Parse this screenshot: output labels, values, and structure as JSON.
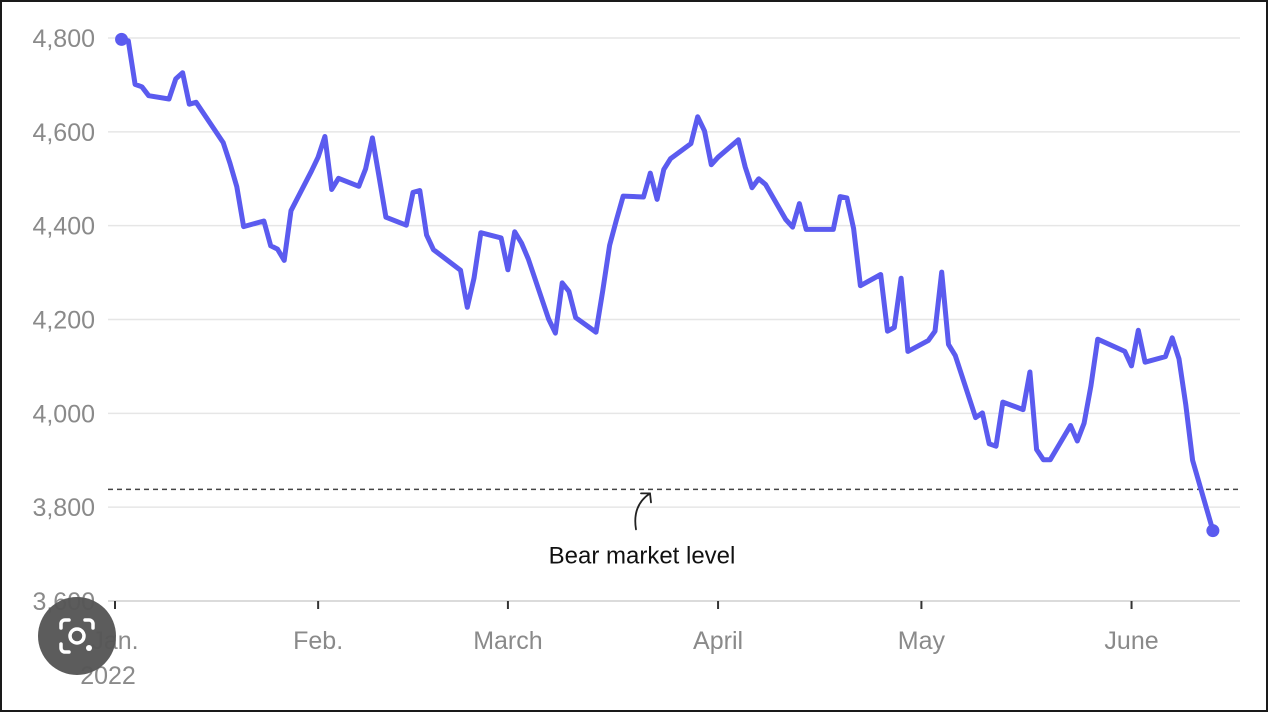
{
  "chart_data": {
    "type": "line",
    "title": "",
    "xlabel": "",
    "ylabel": "",
    "year_label": "2022",
    "ylim": [
      3600,
      4800
    ],
    "yticks": [
      {
        "value": 3600,
        "label": "3,600"
      },
      {
        "value": 3800,
        "label": "3,800"
      },
      {
        "value": 4000,
        "label": "4,000"
      },
      {
        "value": 4200,
        "label": "4,200"
      },
      {
        "value": 4400,
        "label": "4,400"
      },
      {
        "value": 4600,
        "label": "4,600"
      },
      {
        "value": 4800,
        "label": "4,800"
      }
    ],
    "xlim": [
      "2022-01-01",
      "2022-06-17"
    ],
    "xticks": [
      {
        "date": "2022-01-01",
        "label": "Jan."
      },
      {
        "date": "2022-02-01",
        "label": "Feb."
      },
      {
        "date": "2022-03-01",
        "label": "March"
      },
      {
        "date": "2022-04-01",
        "label": "April"
      },
      {
        "date": "2022-05-01",
        "label": "May"
      },
      {
        "date": "2022-06-01",
        "label": "June"
      }
    ],
    "grid": true,
    "reference_line": {
      "value": 3838,
      "label": "Bear market level",
      "style": "dashed"
    },
    "series": [
      {
        "name": "",
        "color": "#5b5bef",
        "points": [
          [
            "2022-01-03",
            4797
          ],
          [
            "2022-01-04",
            4794
          ],
          [
            "2022-01-05",
            4701
          ],
          [
            "2022-01-06",
            4696
          ],
          [
            "2022-01-07",
            4677
          ],
          [
            "2022-01-10",
            4670
          ],
          [
            "2022-01-11",
            4713
          ],
          [
            "2022-01-12",
            4726
          ],
          [
            "2022-01-13",
            4659
          ],
          [
            "2022-01-14",
            4663
          ],
          [
            "2022-01-18",
            4577
          ],
          [
            "2022-01-19",
            4533
          ],
          [
            "2022-01-20",
            4483
          ],
          [
            "2022-01-21",
            4398
          ],
          [
            "2022-01-24",
            4410
          ],
          [
            "2022-01-25",
            4357
          ],
          [
            "2022-01-26",
            4350
          ],
          [
            "2022-01-27",
            4326
          ],
          [
            "2022-01-28",
            4432
          ],
          [
            "2022-01-31",
            4516
          ],
          [
            "2022-02-01",
            4546
          ],
          [
            "2022-02-02",
            4590
          ],
          [
            "2022-02-03",
            4477
          ],
          [
            "2022-02-04",
            4501
          ],
          [
            "2022-02-07",
            4484
          ],
          [
            "2022-02-08",
            4521
          ],
          [
            "2022-02-09",
            4587
          ],
          [
            "2022-02-10",
            4504
          ],
          [
            "2022-02-11",
            4418
          ],
          [
            "2022-02-14",
            4401
          ],
          [
            "2022-02-15",
            4471
          ],
          [
            "2022-02-16",
            4475
          ],
          [
            "2022-02-17",
            4380
          ],
          [
            "2022-02-18",
            4349
          ],
          [
            "2022-02-22",
            4305
          ],
          [
            "2022-02-23",
            4226
          ],
          [
            "2022-02-24",
            4288
          ],
          [
            "2022-02-25",
            4385
          ],
          [
            "2022-02-28",
            4374
          ],
          [
            "2022-03-01",
            4306
          ],
          [
            "2022-03-02",
            4387
          ],
          [
            "2022-03-03",
            4363
          ],
          [
            "2022-03-04",
            4329
          ],
          [
            "2022-03-07",
            4201
          ],
          [
            "2022-03-08",
            4171
          ],
          [
            "2022-03-09",
            4278
          ],
          [
            "2022-03-10",
            4260
          ],
          [
            "2022-03-11",
            4204
          ],
          [
            "2022-03-14",
            4173
          ],
          [
            "2022-03-15",
            4262
          ],
          [
            "2022-03-16",
            4358
          ],
          [
            "2022-03-17",
            4412
          ],
          [
            "2022-03-18",
            4463
          ],
          [
            "2022-03-21",
            4461
          ],
          [
            "2022-03-22",
            4512
          ],
          [
            "2022-03-23",
            4456
          ],
          [
            "2022-03-24",
            4520
          ],
          [
            "2022-03-25",
            4543
          ],
          [
            "2022-03-28",
            4575
          ],
          [
            "2022-03-29",
            4632
          ],
          [
            "2022-03-30",
            4602
          ],
          [
            "2022-03-31",
            4530
          ],
          [
            "2022-04-01",
            4546
          ],
          [
            "2022-04-04",
            4583
          ],
          [
            "2022-04-05",
            4525
          ],
          [
            "2022-04-06",
            4481
          ],
          [
            "2022-04-07",
            4500
          ],
          [
            "2022-04-08",
            4488
          ],
          [
            "2022-04-11",
            4413
          ],
          [
            "2022-04-12",
            4397
          ],
          [
            "2022-04-13",
            4447
          ],
          [
            "2022-04-14",
            4392
          ],
          [
            "2022-04-18",
            4392
          ],
          [
            "2022-04-19",
            4462
          ],
          [
            "2022-04-20",
            4459
          ],
          [
            "2022-04-21",
            4394
          ],
          [
            "2022-04-22",
            4272
          ],
          [
            "2022-04-25",
            4296
          ],
          [
            "2022-04-26",
            4175
          ],
          [
            "2022-04-27",
            4183
          ],
          [
            "2022-04-28",
            4288
          ],
          [
            "2022-04-29",
            4132
          ],
          [
            "2022-05-02",
            4155
          ],
          [
            "2022-05-03",
            4175
          ],
          [
            "2022-05-04",
            4301
          ],
          [
            "2022-05-05",
            4147
          ],
          [
            "2022-05-06",
            4123
          ],
          [
            "2022-05-09",
            3991
          ],
          [
            "2022-05-10",
            4001
          ],
          [
            "2022-05-11",
            3935
          ],
          [
            "2022-05-12",
            3930
          ],
          [
            "2022-05-13",
            4024
          ],
          [
            "2022-05-16",
            4008
          ],
          [
            "2022-05-17",
            4088
          ],
          [
            "2022-05-18",
            3923
          ],
          [
            "2022-05-19",
            3901
          ],
          [
            "2022-05-20",
            3901
          ],
          [
            "2022-05-23",
            3974
          ],
          [
            "2022-05-24",
            3941
          ],
          [
            "2022-05-25",
            3979
          ],
          [
            "2022-05-26",
            4058
          ],
          [
            "2022-05-27",
            4158
          ],
          [
            "2022-05-31",
            4132
          ],
          [
            "2022-06-01",
            4101
          ],
          [
            "2022-06-02",
            4177
          ],
          [
            "2022-06-03",
            4109
          ],
          [
            "2022-06-06",
            4121
          ],
          [
            "2022-06-07",
            4161
          ],
          [
            "2022-06-08",
            4116
          ],
          [
            "2022-06-09",
            4018
          ],
          [
            "2022-06-10",
            3900
          ],
          [
            "2022-06-13",
            3750
          ]
        ]
      }
    ]
  },
  "overlay": {
    "lens_icon": "google-lens-camera-icon"
  }
}
